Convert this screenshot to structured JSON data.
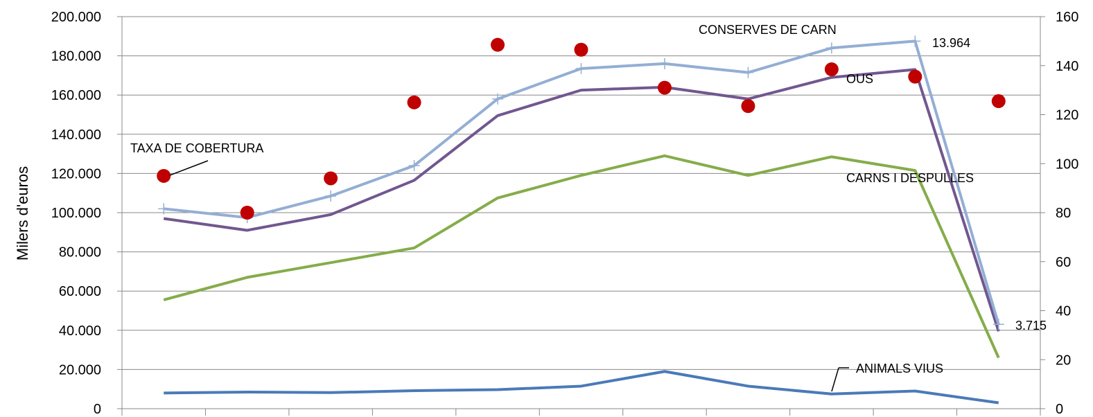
{
  "chart_data": {
    "type": "line",
    "ylabel": "Milers d'euros",
    "ylim": [
      0,
      200000
    ],
    "y_ticks": [
      "0",
      "20.000",
      "40.000",
      "60.000",
      "80.000",
      "100.000",
      "120.000",
      "140.000",
      "160.000",
      "180.000",
      "200.000"
    ],
    "y2lim": [
      0,
      160
    ],
    "y2_ticks": [
      "0",
      "20",
      "40",
      "60",
      "80",
      "100",
      "120",
      "140",
      "160"
    ],
    "category_count": 11,
    "grid": "horizontal",
    "series": [
      {
        "name": "ANIMALS VIUS",
        "axis": "left",
        "style": "line",
        "color": "#4a7ab8",
        "values": [
          8000,
          8500,
          8200,
          9200,
          9700,
          11500,
          19000,
          11500,
          7500,
          9000,
          3000
        ]
      },
      {
        "name": "CARNS I DESPULLES",
        "axis": "left",
        "style": "line",
        "color": "#85ac4a",
        "values": [
          55500,
          67000,
          74500,
          82000,
          107500,
          119000,
          129000,
          119000,
          128500,
          121500,
          26000
        ]
      },
      {
        "name": "OUS",
        "axis": "left",
        "style": "line",
        "color": "#71578f",
        "values": [
          97000,
          91000,
          99000,
          116500,
          149500,
          162500,
          164000,
          158000,
          169000,
          173000,
          39500
        ]
      },
      {
        "name": "CONSERVES DE CARN",
        "axis": "left",
        "style": "line-plus",
        "color": "#94aed4",
        "values": [
          102000,
          97500,
          108500,
          124000,
          158000,
          173500,
          176000,
          171500,
          184000,
          187500,
          43000
        ]
      },
      {
        "name": "TAXA DE COBERTURA",
        "axis": "right",
        "style": "dots",
        "color": "#c00000",
        "values": [
          95,
          80,
          94,
          125,
          148.5,
          146.5,
          131,
          123.5,
          138.5,
          135.5,
          125.5
        ]
      }
    ],
    "annotations": [
      {
        "text": "CONSERVES DE CARN",
        "series": "CONSERVES DE CARN"
      },
      {
        "text": "13.964",
        "series": "CONSERVES DE CARN"
      },
      {
        "text": "3.715",
        "series": "CONSERVES DE CARN"
      },
      {
        "text": "OUS",
        "series": "OUS"
      },
      {
        "text": "CARNS I DESPULLES",
        "series": "CARNS I DESPULLES"
      },
      {
        "text": "TAXA DE COBERTURA",
        "series": "TAXA DE COBERTURA"
      },
      {
        "text": "ANIMALS VIUS",
        "series": "ANIMALS VIUS"
      }
    ]
  }
}
